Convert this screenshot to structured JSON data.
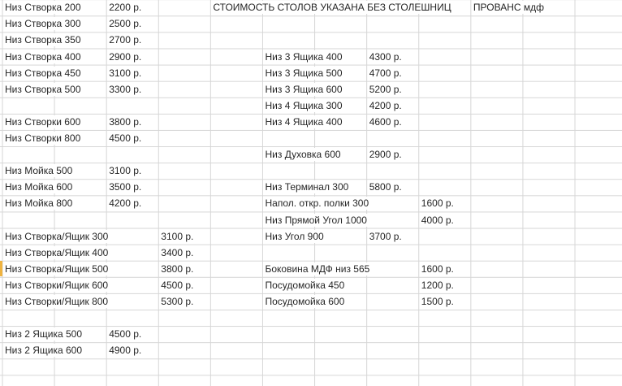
{
  "colors": {
    "background": "#ffffff",
    "gridline": "#d6d6d6",
    "text": "#262626",
    "highlight": "#efb340"
  },
  "sheet": {
    "header": {
      "notice": "СТОИМОСТЬ СТОЛОВ УКАЗАНА БЕЗ СТОЛЕШНИЦ",
      "material": "ПРОВАНС мдф"
    },
    "highlight_marker": {
      "row": 17
    },
    "cells": [
      {
        "row": 1,
        "col": 1,
        "text": "Низ Створка 200"
      },
      {
        "row": 1,
        "col": 3,
        "text": "2200 р."
      },
      {
        "row": 1,
        "col": 5,
        "text": "СТОИМОСТЬ СТОЛОВ УКАЗАНА БЕЗ СТОЛЕШНИЦ",
        "name": "header-notice-cell"
      },
      {
        "row": 1,
        "col": 10,
        "text": "ПРОВАНС мдф",
        "name": "material-header-cell"
      },
      {
        "row": 2,
        "col": 1,
        "text": "Низ Створка 300"
      },
      {
        "row": 2,
        "col": 3,
        "text": "2500 р."
      },
      {
        "row": 3,
        "col": 1,
        "text": "Низ Створка 350"
      },
      {
        "row": 3,
        "col": 3,
        "text": "2700 р."
      },
      {
        "row": 4,
        "col": 1,
        "text": "Низ Створка 400"
      },
      {
        "row": 4,
        "col": 3,
        "text": "2900 р."
      },
      {
        "row": 4,
        "col": 6,
        "text": "Низ 3 Ящика 400"
      },
      {
        "row": 4,
        "col": 8,
        "text": "4300 р."
      },
      {
        "row": 5,
        "col": 1,
        "text": "Низ Створка 450"
      },
      {
        "row": 5,
        "col": 3,
        "text": "3100 р."
      },
      {
        "row": 5,
        "col": 6,
        "text": "Низ 3 Ящика 500"
      },
      {
        "row": 5,
        "col": 8,
        "text": "4700 р."
      },
      {
        "row": 6,
        "col": 1,
        "text": "Низ Створка 500"
      },
      {
        "row": 6,
        "col": 3,
        "text": "3300 р."
      },
      {
        "row": 6,
        "col": 6,
        "text": "Низ 3 Ящика 600"
      },
      {
        "row": 6,
        "col": 8,
        "text": "5200 р."
      },
      {
        "row": 7,
        "col": 6,
        "text": "Низ 4 Ящика 300"
      },
      {
        "row": 7,
        "col": 8,
        "text": "4200 р."
      },
      {
        "row": 8,
        "col": 1,
        "text": "Низ Створки 600"
      },
      {
        "row": 8,
        "col": 3,
        "text": "3800 р."
      },
      {
        "row": 8,
        "col": 6,
        "text": "Низ 4 Ящика 400"
      },
      {
        "row": 8,
        "col": 8,
        "text": "4600 р."
      },
      {
        "row": 9,
        "col": 1,
        "text": "Низ Створки 800"
      },
      {
        "row": 9,
        "col": 3,
        "text": "4500 р."
      },
      {
        "row": 10,
        "col": 6,
        "text": "Низ Духовка 600"
      },
      {
        "row": 10,
        "col": 8,
        "text": "2900 р."
      },
      {
        "row": 11,
        "col": 1,
        "text": "Низ Мойка 500"
      },
      {
        "row": 11,
        "col": 3,
        "text": "3100 р."
      },
      {
        "row": 12,
        "col": 1,
        "text": "Низ Мойка 600"
      },
      {
        "row": 12,
        "col": 3,
        "text": "3500 р."
      },
      {
        "row": 12,
        "col": 6,
        "text": "Низ Терминал 300"
      },
      {
        "row": 12,
        "col": 8,
        "text": "5800 р."
      },
      {
        "row": 13,
        "col": 1,
        "text": "Низ Мойка 800"
      },
      {
        "row": 13,
        "col": 3,
        "text": "4200 р."
      },
      {
        "row": 13,
        "col": 6,
        "text": "Напол. откр. полки 300"
      },
      {
        "row": 13,
        "col": 9,
        "text": "1600 р."
      },
      {
        "row": 14,
        "col": 6,
        "text": "Низ Прямой Угол 1000"
      },
      {
        "row": 14,
        "col": 9,
        "text": "4000 р."
      },
      {
        "row": 15,
        "col": 1,
        "text": "Низ Створка/Ящик 300"
      },
      {
        "row": 15,
        "col": 4,
        "text": "3100 р."
      },
      {
        "row": 15,
        "col": 6,
        "text": "Низ Угол 900"
      },
      {
        "row": 15,
        "col": 8,
        "text": "3700 р."
      },
      {
        "row": 16,
        "col": 1,
        "text": "Низ Створка/Ящик 400"
      },
      {
        "row": 16,
        "col": 4,
        "text": "3400 р."
      },
      {
        "row": 17,
        "col": 1,
        "text": "Низ Створка/Ящик 500"
      },
      {
        "row": 17,
        "col": 4,
        "text": "3800 р."
      },
      {
        "row": 17,
        "col": 6,
        "text": "Боковина МДФ низ 565"
      },
      {
        "row": 17,
        "col": 9,
        "text": "1600 р."
      },
      {
        "row": 18,
        "col": 1,
        "text": "Низ Створки/Ящик 600"
      },
      {
        "row": 18,
        "col": 4,
        "text": "4500 р."
      },
      {
        "row": 18,
        "col": 6,
        "text": "Посудомойка 450"
      },
      {
        "row": 18,
        "col": 9,
        "text": "1200 р."
      },
      {
        "row": 19,
        "col": 1,
        "text": "Низ Створки/Ящик 800"
      },
      {
        "row": 19,
        "col": 4,
        "text": "5300 р."
      },
      {
        "row": 19,
        "col": 6,
        "text": "Посудомойка 600"
      },
      {
        "row": 19,
        "col": 9,
        "text": "1500 р."
      },
      {
        "row": 21,
        "col": 1,
        "text": "Низ 2 Ящика 500"
      },
      {
        "row": 21,
        "col": 3,
        "text": "4500 р."
      },
      {
        "row": 22,
        "col": 1,
        "text": "Низ 2 Ящика 600"
      },
      {
        "row": 22,
        "col": 3,
        "text": "4900 р."
      }
    ]
  }
}
